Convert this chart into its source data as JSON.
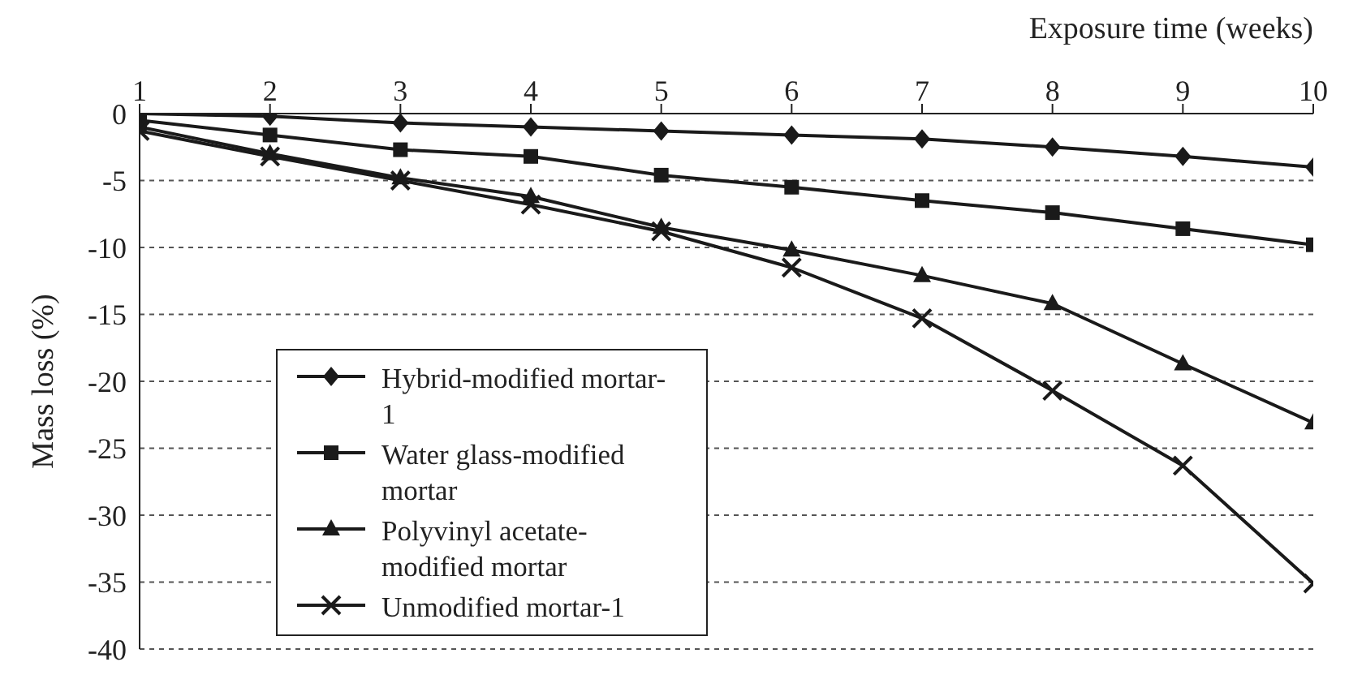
{
  "chart_data": {
    "type": "line",
    "xlabel": "Exposure time (weeks)",
    "ylabel": "Mass loss (%)",
    "x": [
      1,
      2,
      3,
      4,
      5,
      6,
      7,
      8,
      9,
      10
    ],
    "xlim": [
      1,
      10
    ],
    "xticks": [
      1,
      2,
      3,
      4,
      5,
      6,
      7,
      8,
      9,
      10
    ],
    "ylim": [
      -40,
      0
    ],
    "yticks": [
      0,
      -5,
      -10,
      -15,
      -20,
      -25,
      -30,
      -35,
      -40
    ],
    "grid": "y",
    "legend": "bottom left",
    "line_style": "solid",
    "series": [
      {
        "name": "Hybrid-modified mortar-1",
        "color": "#1a1a1a",
        "marker": "diamond",
        "values": [
          0,
          -0.2,
          -0.7,
          -1.0,
          -1.3,
          -1.6,
          -1.9,
          -2.5,
          -3.2,
          -4.0
        ]
      },
      {
        "name": "Water glass-modified mortar",
        "color": "#1a1a1a",
        "marker": "square",
        "values": [
          -0.5,
          -1.6,
          -2.7,
          -3.2,
          -4.6,
          -5.5,
          -6.5,
          -7.4,
          -8.6,
          -9.8
        ]
      },
      {
        "name": "Polyvinyl acetate-modified mortar",
        "color": "#1a1a1a",
        "marker": "triangle",
        "values": [
          -1.0,
          -3.0,
          -4.8,
          -6.2,
          -8.5,
          -10.2,
          -12.1,
          -14.2,
          -18.7,
          -23.1
        ]
      },
      {
        "name": "Unmodified mortar-1",
        "color": "#1a1a1a",
        "marker": "cross",
        "values": [
          -1.3,
          -3.2,
          -5.0,
          -6.8,
          -8.8,
          -11.5,
          -15.3,
          -20.7,
          -26.3,
          -35.1
        ]
      }
    ]
  }
}
